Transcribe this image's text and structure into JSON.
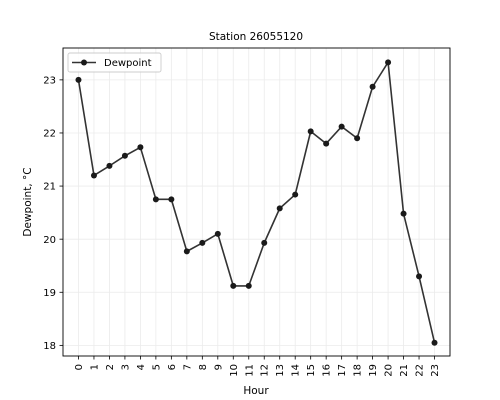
{
  "chart_data": {
    "type": "line",
    "title": "Station 26055120",
    "xlabel": "Hour",
    "ylabel": "Dewpoint, °C",
    "x": [
      0,
      1,
      2,
      3,
      4,
      5,
      6,
      7,
      8,
      9,
      10,
      11,
      12,
      13,
      14,
      15,
      16,
      17,
      18,
      19,
      20,
      21,
      22,
      23
    ],
    "x_tick_labels": [
      "0",
      "1",
      "2",
      "3",
      "4",
      "5",
      "6",
      "7",
      "8",
      "9",
      "10",
      "11",
      "12",
      "13",
      "14",
      "15",
      "16",
      "17",
      "18",
      "19",
      "20",
      "21",
      "22",
      "23"
    ],
    "series": [
      {
        "name": "Dewpoint",
        "color": "#333333",
        "marker_color": "#1a1a1a",
        "values": [
          23.0,
          21.2,
          21.38,
          21.57,
          21.73,
          20.75,
          20.75,
          19.77,
          19.93,
          20.1,
          19.12,
          19.12,
          19.93,
          20.58,
          20.84,
          22.03,
          21.8,
          22.12,
          21.9,
          22.87,
          23.33,
          20.48,
          19.3,
          18.05
        ]
      }
    ],
    "xlim": [
      -1,
      24
    ],
    "ylim": [
      17.8,
      23.6
    ],
    "y_ticks": [
      18,
      19,
      20,
      21,
      22,
      23
    ],
    "y_tick_labels": [
      "18",
      "19",
      "20",
      "21",
      "22",
      "23"
    ],
    "grid": true,
    "legend_position": "top-left"
  }
}
